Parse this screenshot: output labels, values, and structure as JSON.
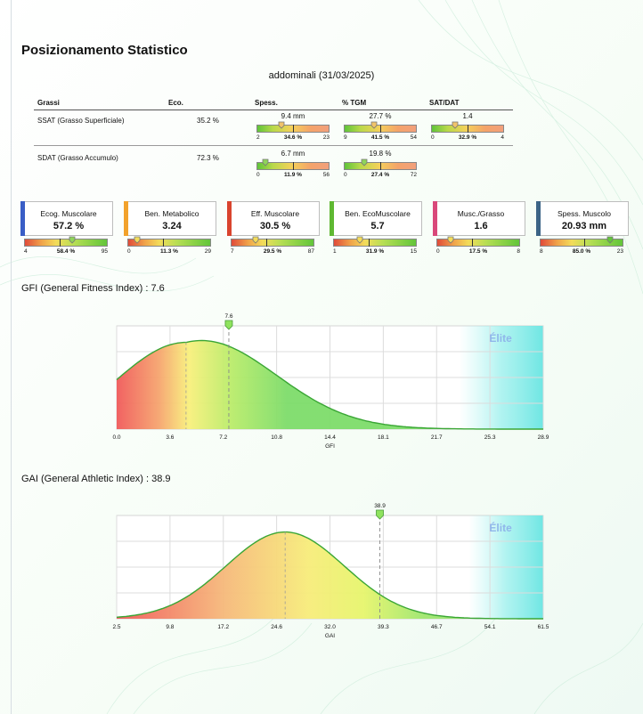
{
  "page": {
    "title": "Posizionamento Statistico",
    "subtitle": "addominali (31/03/2025)"
  },
  "fat_table": {
    "headers": {
      "grassi": "Grassi",
      "eco": "Eco.",
      "spess": "Spess.",
      "tgm": "% TGM",
      "sat_dat": "SAT/DAT"
    },
    "rows": [
      {
        "label": "SSAT (Grasso Superficiale)",
        "eco": "35.2 %",
        "spess": {
          "value": "9.4 mm",
          "min": "2",
          "max": "23",
          "pct": "34.6 %",
          "pct_num": 34.6
        },
        "tgm": {
          "value": "27.7 %",
          "min": "9",
          "max": "54",
          "pct": "41.5 %",
          "pct_num": 41.5
        },
        "sat_dat": {
          "value": "1.4",
          "min": "0",
          "max": "4",
          "pct": "32.9 %",
          "pct_num": 32.9
        }
      },
      {
        "label": "SDAT (Grasso Accumulo)",
        "eco": "72.3 %",
        "spess": {
          "value": "6.7 mm",
          "min": "0",
          "max": "56",
          "pct": "11.9 %",
          "pct_num": 11.9
        },
        "tgm": {
          "value": "19.8 %",
          "min": "0",
          "max": "72",
          "pct": "27.4 %",
          "pct_num": 27.4
        }
      }
    ]
  },
  "kpis": [
    {
      "label": "Ecog. Muscolare",
      "value": "57.2 %",
      "color": "#3a5ec6",
      "min": "4",
      "max": "95",
      "pct": "58.4 %",
      "pct_num": 58.4
    },
    {
      "label": "Ben. Metabolico",
      "value": "3.24",
      "color": "#f2a22c",
      "min": "0",
      "max": "29",
      "pct": "11.3 %",
      "pct_num": 11.3
    },
    {
      "label": "Eff. Muscolare",
      "value": "30.5 %",
      "color": "#d9442e",
      "min": "7",
      "max": "87",
      "pct": "29.5 %",
      "pct_num": 29.5
    },
    {
      "label": "Ben. EcoMuscolare",
      "value": "5.7",
      "color": "#5fb832",
      "min": "1",
      "max": "15",
      "pct": "31.9 %",
      "pct_num": 31.9
    },
    {
      "label": "Musc./Grasso",
      "value": "1.6",
      "color": "#d9487a",
      "min": "0",
      "max": "8",
      "pct": "17.5 %",
      "pct_num": 17.5
    },
    {
      "label": "Spess. Muscolo",
      "value": "20.93 mm",
      "color": "#3c6486",
      "min": "8",
      "max": "23",
      "pct": "85.0 %",
      "pct_num": 85.0
    }
  ],
  "chart_data": [
    {
      "type": "area",
      "title": "GFI (General Fitness Index) : 7.6",
      "xlabel": "GFI",
      "x_ticks": [
        "0.0",
        "3.6",
        "7.2",
        "10.8",
        "14.4",
        "18.1",
        "21.7",
        "25.3",
        "28.9"
      ],
      "xlim": [
        0,
        28.9
      ],
      "distribution": {
        "kind": "skewed",
        "peak_x": 4.7,
        "start_fraction": 0.57
      },
      "marker": {
        "value": 7.6,
        "label": "7.6"
      },
      "elite_label": "Élite",
      "elite_from": 23.2
    },
    {
      "type": "area",
      "title": "GAI (General Athletic Index) : 38.9",
      "xlabel": "GAI",
      "x_ticks": [
        "2.5",
        "9.8",
        "17.2",
        "24.6",
        "32.0",
        "39.3",
        "46.7",
        "54.1",
        "61.5"
      ],
      "xlim": [
        2.5,
        61.5
      ],
      "distribution": {
        "kind": "normal",
        "mean": 25.8,
        "sd": 8.2
      },
      "marker": {
        "value": 38.9,
        "label": "38.9"
      },
      "elite_label": "Élite",
      "elite_from": 51.2
    }
  ]
}
